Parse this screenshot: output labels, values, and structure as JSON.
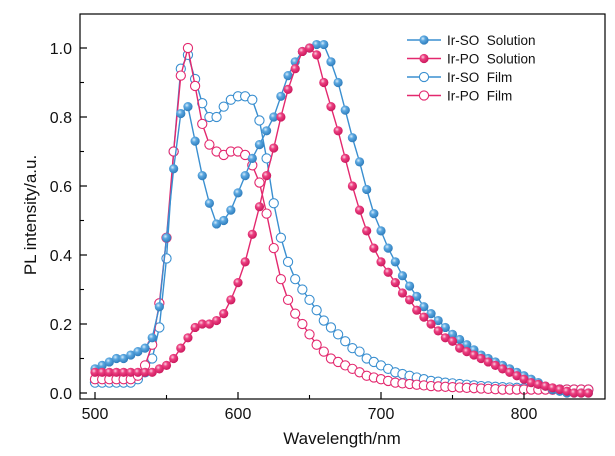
{
  "chart_data": {
    "type": "line",
    "title": "",
    "xlabel": "Wavelength/nm",
    "ylabel": "PL intensity/a.u.",
    "xlim": [
      488,
      850
    ],
    "ylim": [
      -0.015,
      1.1
    ],
    "x_ticks": [
      500,
      600,
      700,
      800
    ],
    "x_minor_ticks": [
      550,
      650,
      750
    ],
    "y_ticks": [
      0.0,
      0.2,
      0.4,
      0.6,
      0.8,
      1.0
    ],
    "y_tick_labels": [
      "0.0",
      "0.2",
      "0.4",
      "0.6",
      "0.8",
      "1.0"
    ],
    "y_minor_ticks": [
      0.1,
      0.3,
      0.5,
      0.7,
      0.9
    ],
    "grid": false,
    "legend_position": "top-right",
    "x_start": 500,
    "x_step": 5,
    "series": [
      {
        "name": "Ir-SO  Solution",
        "color": "#3a8fd0",
        "marker": "filled-circle",
        "values": [
          0.07,
          0.08,
          0.09,
          0.1,
          0.1,
          0.11,
          0.12,
          0.13,
          0.16,
          0.25,
          0.45,
          0.65,
          0.81,
          0.83,
          0.73,
          0.63,
          0.55,
          0.49,
          0.5,
          0.53,
          0.58,
          0.63,
          0.68,
          0.72,
          0.76,
          0.8,
          0.86,
          0.92,
          0.96,
          0.99,
          1.0,
          1.01,
          1.01,
          0.96,
          0.9,
          0.82,
          0.74,
          0.67,
          0.59,
          0.52,
          0.47,
          0.42,
          0.38,
          0.34,
          0.31,
          0.28,
          0.25,
          0.23,
          0.21,
          0.19,
          0.17,
          0.155,
          0.14,
          0.125,
          0.11,
          0.1,
          0.09,
          0.08,
          0.07,
          0.06,
          0.05,
          0.04,
          0.03,
          0.02,
          0.01,
          0.005,
          0.0,
          0.0,
          0.0,
          0.0
        ]
      },
      {
        "name": "Ir-PO  Solution",
        "color": "#e3286e",
        "marker": "filled-circle",
        "values": [
          0.06,
          0.06,
          0.06,
          0.06,
          0.06,
          0.06,
          0.06,
          0.06,
          0.06,
          0.07,
          0.08,
          0.1,
          0.13,
          0.16,
          0.19,
          0.2,
          0.2,
          0.21,
          0.23,
          0.27,
          0.32,
          0.38,
          0.46,
          0.54,
          0.63,
          0.71,
          0.8,
          0.88,
          0.94,
          0.99,
          1.0,
          0.98,
          0.9,
          0.83,
          0.76,
          0.68,
          0.6,
          0.53,
          0.47,
          0.42,
          0.38,
          0.35,
          0.32,
          0.29,
          0.27,
          0.24,
          0.22,
          0.2,
          0.18,
          0.16,
          0.15,
          0.13,
          0.12,
          0.11,
          0.1,
          0.09,
          0.08,
          0.07,
          0.06,
          0.05,
          0.04,
          0.03,
          0.025,
          0.02,
          0.015,
          0.01,
          0.005,
          0.0,
          0.0,
          0.0
        ]
      },
      {
        "name": "Ir-SO  Film",
        "color": "#3a8fd0",
        "marker": "open-circle",
        "values": [
          0.03,
          0.03,
          0.03,
          0.03,
          0.03,
          0.03,
          0.04,
          0.06,
          0.1,
          0.19,
          0.39,
          0.7,
          0.94,
          0.98,
          0.91,
          0.84,
          0.8,
          0.8,
          0.83,
          0.85,
          0.86,
          0.86,
          0.85,
          0.79,
          0.68,
          0.55,
          0.45,
          0.38,
          0.33,
          0.3,
          0.27,
          0.24,
          0.21,
          0.19,
          0.17,
          0.15,
          0.13,
          0.12,
          0.1,
          0.09,
          0.08,
          0.07,
          0.06,
          0.055,
          0.05,
          0.045,
          0.04,
          0.035,
          0.033,
          0.03,
          0.028,
          0.026,
          0.024,
          0.022,
          0.02,
          0.019,
          0.018,
          0.017,
          0.016,
          0.015,
          0.014,
          0.013,
          0.012,
          0.011,
          0.01,
          0.01,
          0.01,
          0.01,
          0.01,
          0.01
        ]
      },
      {
        "name": "Ir-PO  Film",
        "color": "#e3286e",
        "marker": "open-circle",
        "values": [
          0.04,
          0.04,
          0.04,
          0.04,
          0.04,
          0.04,
          0.05,
          0.08,
          0.14,
          0.26,
          0.45,
          0.7,
          0.92,
          1.0,
          0.89,
          0.78,
          0.72,
          0.7,
          0.69,
          0.7,
          0.7,
          0.69,
          0.66,
          0.61,
          0.52,
          0.42,
          0.33,
          0.27,
          0.23,
          0.2,
          0.17,
          0.14,
          0.12,
          0.1,
          0.09,
          0.08,
          0.07,
          0.06,
          0.05,
          0.045,
          0.04,
          0.035,
          0.03,
          0.028,
          0.026,
          0.024,
          0.022,
          0.02,
          0.019,
          0.018,
          0.017,
          0.016,
          0.015,
          0.014,
          0.013,
          0.012,
          0.011,
          0.01,
          0.01,
          0.01,
          0.01,
          0.01,
          0.01,
          0.01,
          0.01,
          0.01,
          0.01,
          0.01,
          0.01,
          0.01
        ]
      }
    ]
  }
}
